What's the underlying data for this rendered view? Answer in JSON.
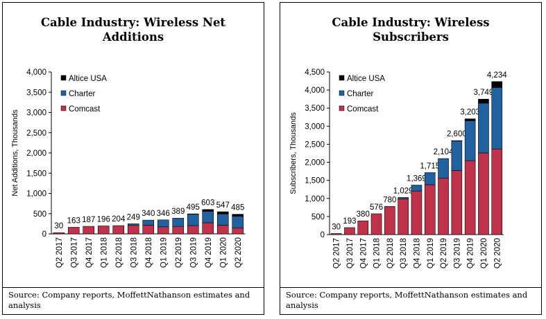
{
  "charts": [
    {
      "title": "Cable Industry: Wireless Net Additions",
      "source": "Source: Company reports, MoffettNathanson estimates and analysis"
    },
    {
      "title": "Cable Industry: Wireless Subscribers",
      "source": "Source: Company reports, MoffettNathanson estimates and analysis"
    }
  ],
  "chart_data": [
    {
      "type": "bar",
      "stacked": true,
      "title": "Cable Industry: Wireless Net Additions",
      "ylabel": "Net Additions, Thousands",
      "xlabel": "",
      "ylim": [
        0,
        4000
      ],
      "yticks": [
        0,
        500,
        1000,
        1500,
        2000,
        2500,
        3000,
        3500,
        4000
      ],
      "ytick_labels": [
        "0",
        "500",
        "1,000",
        "1,500",
        "2,000",
        "2,500",
        "3,000",
        "3,500",
        "4,000"
      ],
      "categories": [
        "Q2 2017",
        "Q3 2017",
        "Q4 2017",
        "Q1 2018",
        "Q2 2018",
        "Q3 2018",
        "Q4 2018",
        "Q1 2019",
        "Q2 2019",
        "Q3 2019",
        "Q4 2019",
        "Q1 2020",
        "Q2 2020"
      ],
      "series": [
        {
          "name": "Comcast",
          "color": "#c0324a",
          "values": [
            30,
            163,
            187,
            196,
            204,
            210,
            215,
            175,
            185,
            205,
            275,
            215,
            150
          ]
        },
        {
          "name": "Charter",
          "color": "#2062a0",
          "values": [
            0,
            0,
            0,
            0,
            0,
            39,
            125,
            171,
            204,
            282,
            283,
            276,
            285
          ]
        },
        {
          "name": "Altice USA",
          "color": "#000000",
          "values": [
            0,
            0,
            0,
            0,
            0,
            0,
            0,
            0,
            0,
            8,
            45,
            56,
            50
          ]
        }
      ],
      "total_labels": [
        "30",
        "163",
        "187",
        "196",
        "204",
        "249",
        "340",
        "346",
        "389",
        "495",
        "603",
        "547",
        "485"
      ],
      "legend": "top-left",
      "legend_order": [
        "Altice USA",
        "Charter",
        "Comcast"
      ],
      "grid": false
    },
    {
      "type": "bar",
      "stacked": true,
      "title": "Cable Industry: Wireless Subscribers",
      "ylabel": "Subscribers, Thousands",
      "xlabel": "",
      "ylim": [
        0,
        4500
      ],
      "yticks": [
        0,
        500,
        1000,
        1500,
        2000,
        2500,
        3000,
        3500,
        4000,
        4500
      ],
      "ytick_labels": [
        "0",
        "500",
        "1,000",
        "1,500",
        "2,000",
        "2,500",
        "3,000",
        "3,500",
        "4,000",
        "4,500"
      ],
      "categories": [
        "Q2 2017",
        "Q3 2017",
        "Q4 2017",
        "Q1 2018",
        "Q2 2018",
        "Q3 2018",
        "Q4 2018",
        "Q1 2019",
        "Q2 2019",
        "Q3 2019",
        "Q4 2019",
        "Q1 2020",
        "Q2 2020"
      ],
      "series": [
        {
          "name": "Comcast",
          "color": "#c0324a",
          "values": [
            30,
            193,
            380,
            576,
            780,
            990,
            1205,
            1380,
            1565,
            1770,
            2045,
            2260,
            2370
          ]
        },
        {
          "name": "Charter",
          "color": "#2062a0",
          "values": [
            0,
            0,
            0,
            0,
            0,
            39,
            164,
            335,
            539,
            822,
            1105,
            1378,
            1700
          ]
        },
        {
          "name": "Altice USA",
          "color": "#000000",
          "values": [
            0,
            0,
            0,
            0,
            0,
            0,
            0,
            0,
            0,
            8,
            53,
            111,
            164
          ]
        }
      ],
      "total_labels": [
        "30",
        "193",
        "380",
        "576",
        "780",
        "1,029",
        "1,369",
        "1,715",
        "2,104",
        "2,600",
        "3,203",
        "3,749",
        "4,234"
      ],
      "legend": "top-left",
      "legend_order": [
        "Altice USA",
        "Charter",
        "Comcast"
      ],
      "grid": false
    }
  ]
}
